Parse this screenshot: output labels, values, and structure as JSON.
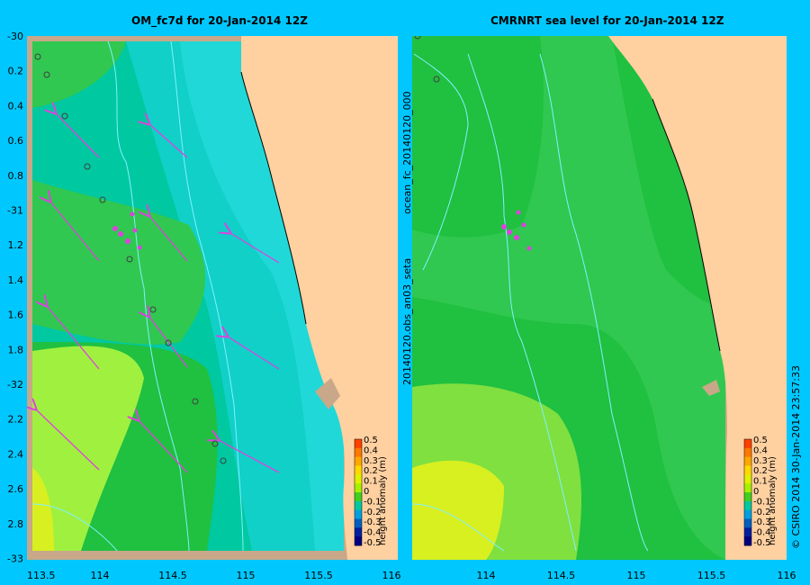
{
  "panels": [
    {
      "title": "OM_fc7d for 20-Jan-2014 12Z"
    },
    {
      "title": "CMRNRT sea level  for 20-Jan-2014 12Z"
    }
  ],
  "side_labels": {
    "left": "ocean_fc_20140120_000",
    "left2": "20140120.obs_an03_seta",
    "right": "© CSIRO 2014   30-Jan-2014 23:57:33"
  },
  "lat_labels": [
    "-30",
    "0.2",
    "0.4",
    "0.6",
    "0.8",
    "-31",
    "1.2",
    "1.4",
    "1.6",
    "1.8",
    "-32",
    "2.2",
    "2.4",
    "2.6",
    "2.8",
    "-33"
  ],
  "lon_labels_left": [
    "113.5",
    "114",
    "114.5",
    "115",
    "115.5",
    "116"
  ],
  "lon_labels_right": [
    "114",
    "114.5",
    "115",
    "115.5",
    "116"
  ],
  "colorbar": {
    "label": "height anomaly (m)",
    "ticks": [
      "0.5",
      "0.4",
      "0.3",
      "0.2",
      "0.1",
      "0",
      "-0.1",
      "-0.2",
      "-0.3",
      "-0.4",
      "-0.5"
    ],
    "colors": [
      "#ff4000",
      "#ff7800",
      "#ffa800",
      "#ffd800",
      "#e0f000",
      "#a8f000",
      "#40d020",
      "#00c8a0",
      "#00a0e0",
      "#0060c0",
      "#0020a0",
      "#000080"
    ]
  },
  "colors": {
    "background": "#00c8ff",
    "land": "#ffd0a0",
    "shelf": "#c8a888"
  }
}
